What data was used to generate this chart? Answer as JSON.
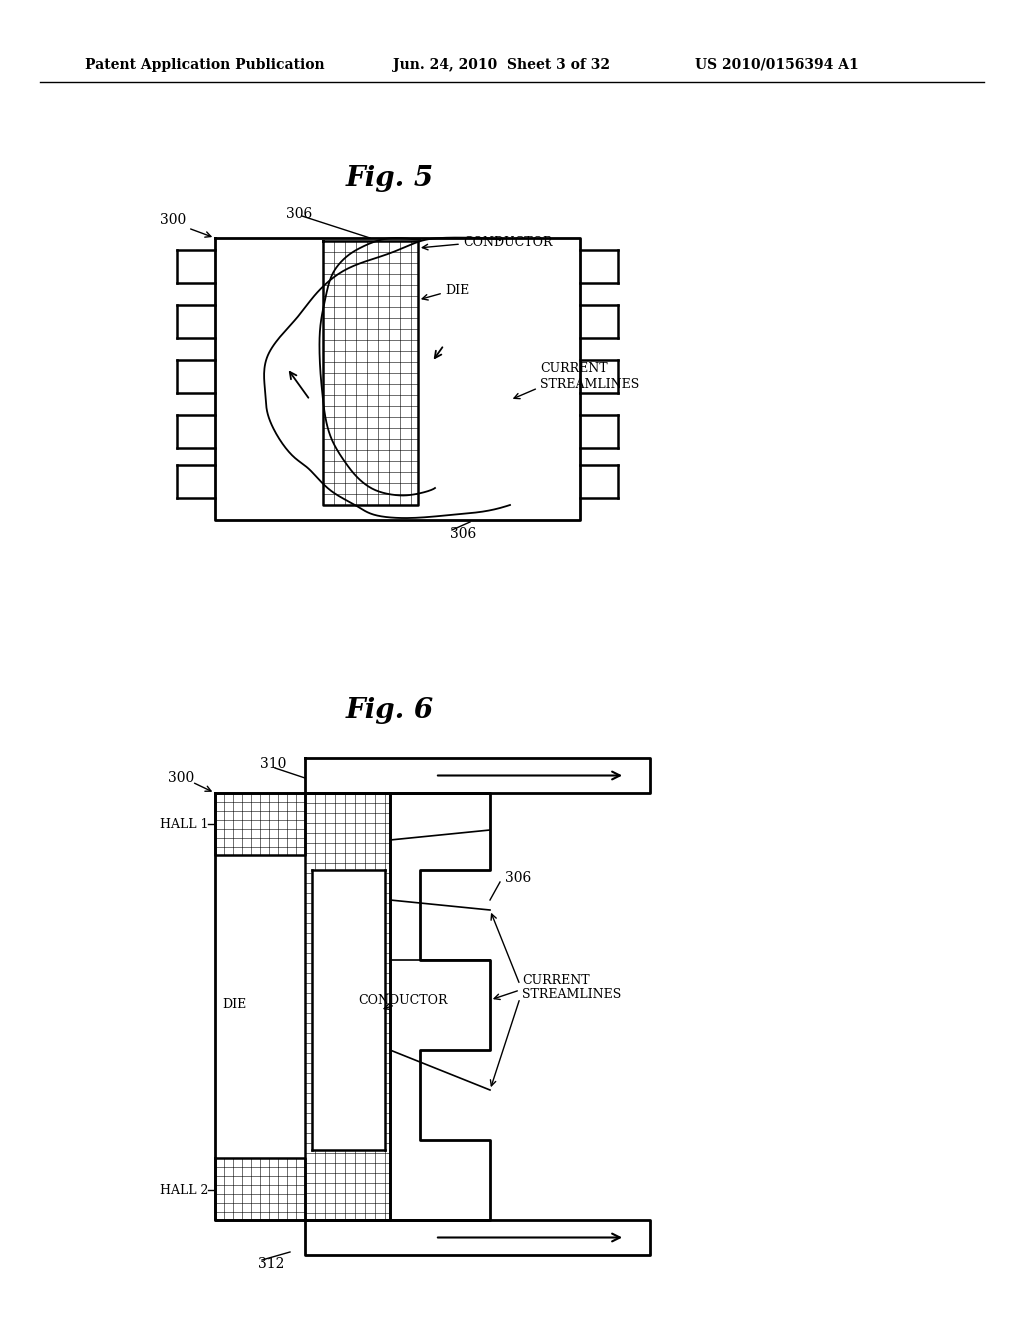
{
  "header_left": "Patent Application Publication",
  "header_center": "Jun. 24, 2010  Sheet 3 of 32",
  "header_right": "US 2010/0156394 A1",
  "fig5_title": "Fig. 5",
  "fig6_title": "Fig. 6",
  "bg_color": "#ffffff",
  "line_color": "#000000"
}
